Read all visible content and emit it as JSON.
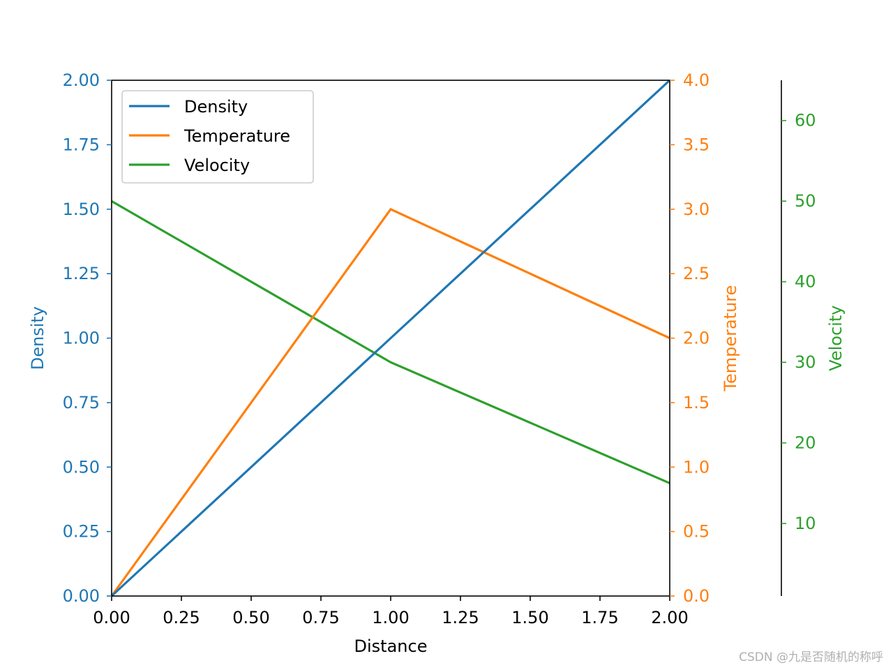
{
  "chart_data": {
    "type": "line",
    "x": [
      0,
      1,
      2
    ],
    "xlabel": "Distance",
    "xlim": [
      0,
      2
    ],
    "x_ticks": [
      "0.00",
      "0.25",
      "0.50",
      "0.75",
      "1.00",
      "1.25",
      "1.50",
      "1.75",
      "2.00"
    ],
    "series": [
      {
        "name": "Density",
        "values": [
          0,
          1,
          2
        ],
        "color": "#1f77b4",
        "axis": "left",
        "ylabel": "Density",
        "ylim": [
          0,
          2
        ],
        "ticks": [
          "0.00",
          "0.25",
          "0.50",
          "0.75",
          "1.00",
          "1.25",
          "1.50",
          "1.75",
          "2.00"
        ]
      },
      {
        "name": "Temperature",
        "values": [
          0,
          3,
          2
        ],
        "color": "#ff7f0e",
        "axis": "right",
        "ylabel": "Temperature",
        "ylim": [
          0,
          4
        ],
        "ticks": [
          "0.0",
          "0.5",
          "1.0",
          "1.5",
          "2.0",
          "2.5",
          "3.0",
          "3.5",
          "4.0"
        ]
      },
      {
        "name": "Velocity",
        "values": [
          50,
          30,
          15
        ],
        "color": "#2ca02c",
        "axis": "right-offset",
        "ylabel": "Velocity",
        "ylim": [
          1,
          65
        ],
        "ticks": [
          "10",
          "20",
          "30",
          "40",
          "50",
          "60"
        ]
      }
    ],
    "legend": {
      "entries": [
        "Density",
        "Temperature",
        "Velocity"
      ],
      "position": "upper-left"
    },
    "grid": false
  },
  "watermark": "CSDN @九是否随机的称呼"
}
